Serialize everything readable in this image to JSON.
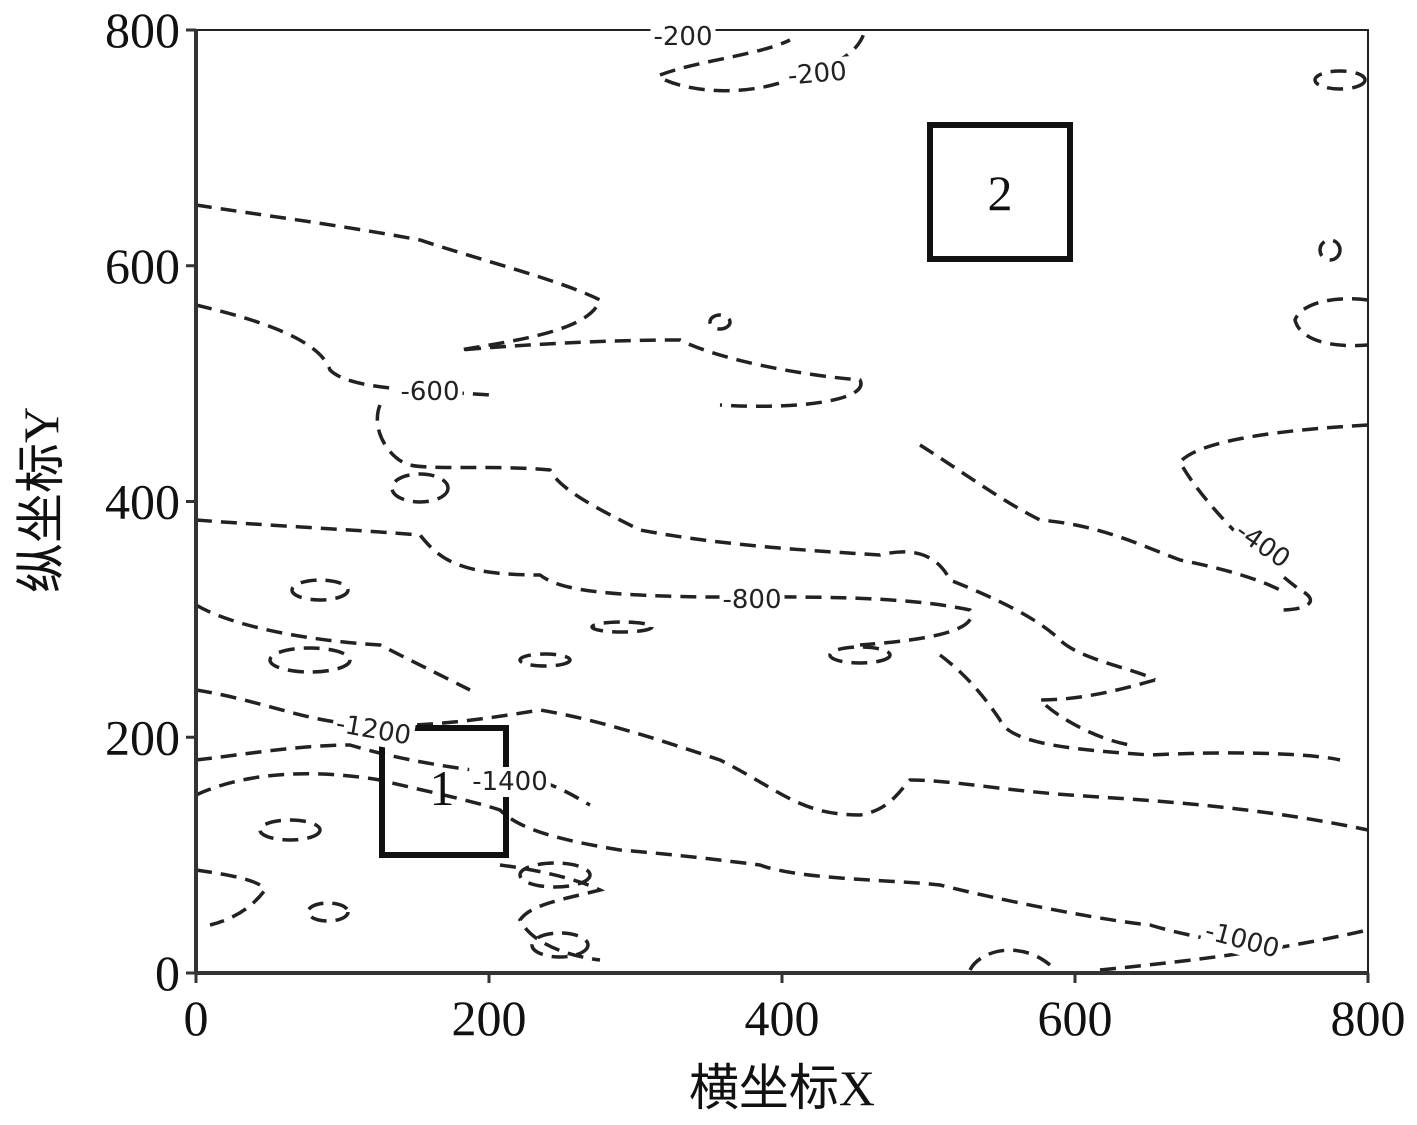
{
  "chart_data": {
    "type": "contour",
    "xlabel": "横坐标X",
    "ylabel": "纵坐标Y",
    "xlim": [
      0,
      800
    ],
    "ylim": [
      0,
      800
    ],
    "xticks": [
      0,
      200,
      400,
      600,
      800
    ],
    "yticks": [
      0,
      200,
      400,
      600,
      800
    ],
    "contour_labels": [
      -200,
      -200,
      -600,
      -400,
      -800,
      -1000,
      -1200,
      -1400
    ],
    "annotations": [
      "1",
      "2"
    ],
    "color": "#222222"
  }
}
